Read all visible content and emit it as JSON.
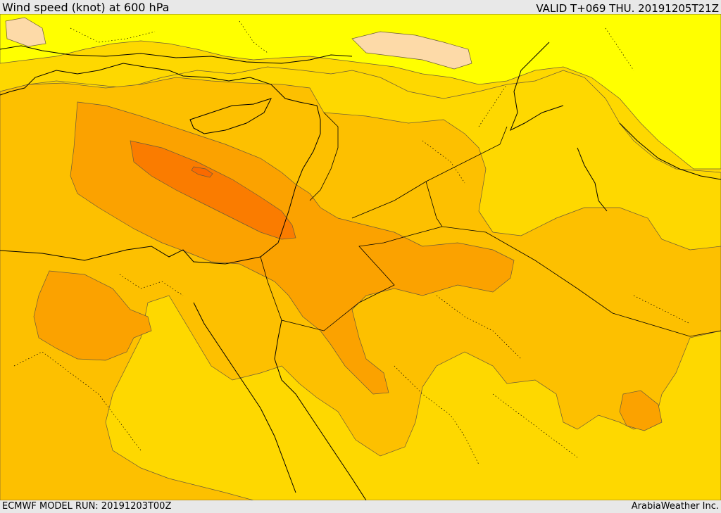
{
  "header": {
    "title": "Wind speed (knot) at 600 hPa",
    "valid": "VALID T+069 THU. 20191205T21Z"
  },
  "footer": {
    "model_run": "ECMWF MODEL RUN: 20191203T00Z",
    "credit": "ArabiaWeather Inc."
  },
  "map": {
    "colors": {
      "ocean_white": "#ffffff",
      "light_peach": "#fddaa8",
      "light_yellow": "#ffff00",
      "gold": "#fed800",
      "light_orange": "#fdc000",
      "orange": "#fba200",
      "deep_orange": "#fa7c00"
    }
  }
}
